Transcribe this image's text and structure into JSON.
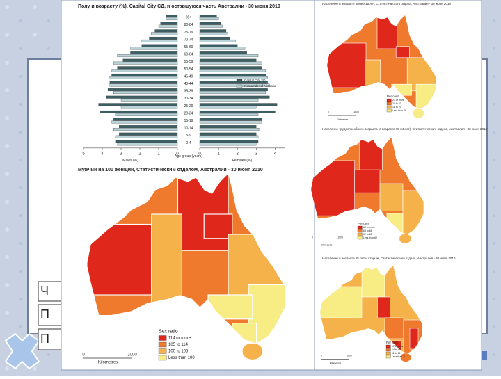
{
  "chart_data": [
    {
      "type": "pyramid",
      "title": "Полу и возрасту (%), Capital City СД, и оставшуюся часть Австралии - 30 июня 2010",
      "ylabel": "Age group (years)",
      "xlabel": "Males (%)",
      "categories": [
        "0-4",
        "5-9",
        "10-14",
        "15-19",
        "20-24",
        "25-29",
        "30-34",
        "35-39",
        "40-44",
        "45-49",
        "50-54",
        "55-59",
        "60-64",
        "65-69",
        "70-74",
        "75-79",
        "80-84",
        "85+"
      ],
      "series": [
        {
          "name": "Capital City SD",
          "color": "#3c5f63",
          "values": [
            3.3,
            3.1,
            3.1,
            3.4,
            4.1,
            4.2,
            3.8,
            3.7,
            3.6,
            3.5,
            3.2,
            2.9,
            2.5,
            1.9,
            1.5,
            1.2,
            0.9,
            0.6
          ]
        },
        {
          "name": "Remainder of Australia",
          "color": "#b9d3d8",
          "values": [
            3.2,
            3.3,
            3.4,
            3.5,
            3.3,
            3.0,
            3.0,
            3.4,
            3.6,
            3.6,
            3.5,
            3.4,
            3.2,
            2.5,
            1.9,
            1.4,
            1.0,
            0.6
          ]
        }
      ],
      "xlim": [
        5,
        0
      ],
      "xticks": [
        5,
        4,
        3,
        2,
        1,
        0
      ]
    },
    {
      "type": "pyramid",
      "xlabel": "Females (%)",
      "series": [
        {
          "name": "Capital City SD",
          "color": "#3c5f63",
          "values": [
            3.1,
            3.0,
            3.0,
            3.3,
            4.0,
            4.1,
            3.7,
            3.6,
            3.6,
            3.5,
            3.3,
            3.0,
            2.5,
            2.0,
            1.6,
            1.4,
            1.1,
            0.9
          ]
        },
        {
          "name": "Remainder of Australia",
          "color": "#b9d3d8",
          "values": [
            3.0,
            3.1,
            3.2,
            3.3,
            3.1,
            3.0,
            3.1,
            3.5,
            3.7,
            3.6,
            3.5,
            3.3,
            3.1,
            2.4,
            1.9,
            1.5,
            1.2,
            1.0
          ]
        }
      ],
      "xlim": [
        0,
        4.5
      ],
      "xticks": [
        0,
        1,
        2,
        3,
        4
      ]
    }
  ],
  "maps": [
    {
      "title": "Мужчин на 100 женщин, Статистическим отделом, Австралии - 30 июня 2010",
      "legend_title": "Sex ratio",
      "legend": [
        {
          "label": "114 or more",
          "color": "#e0271b"
        },
        {
          "label": "105 to 114",
          "color": "#ef7a2e"
        },
        {
          "label": "100 to 105",
          "color": "#f6b24a"
        },
        {
          "label": "Less than 100",
          "color": "#f8ec85"
        }
      ],
      "scale": [
        "0",
        "1000",
        "Kilometres"
      ]
    },
    {
      "title": "Население в возрасте менее 15 лет, Статистического отдела, Австралия - 30 июня 2010",
      "legend_title": "Per cent",
      "legend": [
        {
          "label": "23 or more",
          "color": "#e0271b"
        },
        {
          "label": "20 to 23",
          "color": "#ef7a2e"
        },
        {
          "label": "18 to 20",
          "color": "#f6b24a"
        },
        {
          "label": "Less than 18",
          "color": "#f8ec85"
        }
      ],
      "scale": [
        "0",
        "1000",
        "Kilometres"
      ]
    },
    {
      "title": "Население трудоспособного возраста (в возрасте 15-64 лет), Статистического отдела, Австралия - 30 июня 2010",
      "legend_title": "Per cent",
      "legend": [
        {
          "label": "68 or more",
          "color": "#e0271b"
        },
        {
          "label": "65 to 68",
          "color": "#ef7a2e"
        },
        {
          "label": "62 to 65",
          "color": "#f6b24a"
        },
        {
          "label": "Less than 62",
          "color": "#f8ec85"
        }
      ],
      "scale": [
        "0",
        "1000",
        "Kilometres"
      ]
    },
    {
      "title": "Население в возрасте 65 лет и старше, Статистического отдела, Австралия - 30 июня 2010",
      "legend_title": "Per cent",
      "legend": [
        {
          "label": "17 or more",
          "color": "#e0271b"
        },
        {
          "label": "14 to 17",
          "color": "#ef7a2e"
        },
        {
          "label": "11 to 14",
          "color": "#f6b24a"
        },
        {
          "label": "Less than 11",
          "color": "#f8ec85"
        }
      ],
      "scale": [
        "0",
        "1000",
        "Kilometres"
      ]
    }
  ],
  "slide": {
    "cells": [
      "Ч",
      "П",
      "П"
    ]
  }
}
